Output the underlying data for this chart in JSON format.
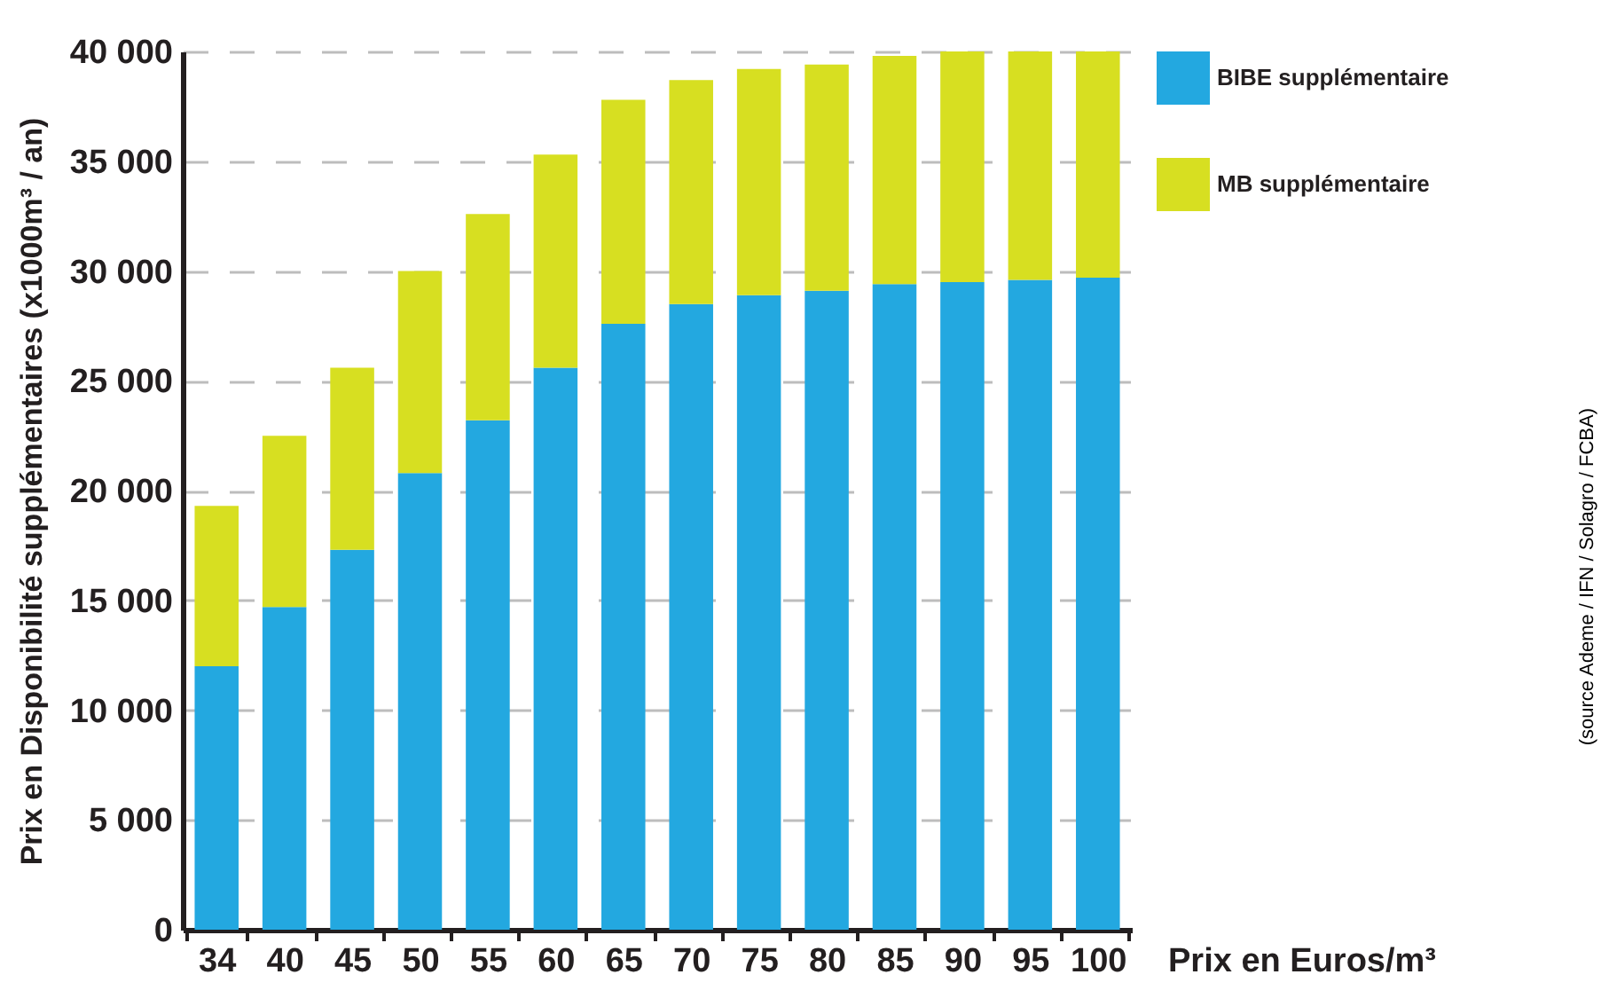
{
  "chart_data": {
    "type": "bar",
    "stacked": true,
    "xlabel": "Prix en Euros/m³",
    "ylabel": "Prix en Disponibilité supplémentaires (x1000m³ / an)",
    "categories": [
      "34",
      "40",
      "45",
      "50",
      "55",
      "60",
      "65",
      "70",
      "75",
      "80",
      "85",
      "90",
      "95",
      "100"
    ],
    "series": [
      {
        "name": "BIBE supplémentaire",
        "color": "#23a8e0",
        "values": [
          12000,
          14700,
          17300,
          20800,
          23200,
          25600,
          27600,
          28500,
          28900,
          29100,
          29400,
          29500,
          29600,
          29700
        ]
      },
      {
        "name": "MB supplémentaire",
        "color": "#d7df21",
        "values": [
          7300,
          7800,
          8300,
          9200,
          9400,
          9700,
          10200,
          10200,
          10300,
          10300,
          10400,
          10500,
          10400,
          10300
        ]
      }
    ],
    "ylim": [
      0,
      40000
    ],
    "yticks": [
      0,
      {
        "value": 5000,
        "label": "5 000"
      },
      {
        "value": 10000,
        "label": "10 000"
      },
      {
        "value": 15000,
        "label": "15 000"
      },
      {
        "value": 20000,
        "label": "20 000"
      },
      {
        "value": 25000,
        "label": "25 000"
      },
      {
        "value": 30000,
        "label": "30 000"
      },
      {
        "value": 35000,
        "label": "35 000"
      },
      {
        "value": 40000,
        "label": "40 000"
      }
    ],
    "grid": "y",
    "legend": "right",
    "annotations": [
      "(source Ademe / IFN / Solagro / FCBA)"
    ]
  }
}
